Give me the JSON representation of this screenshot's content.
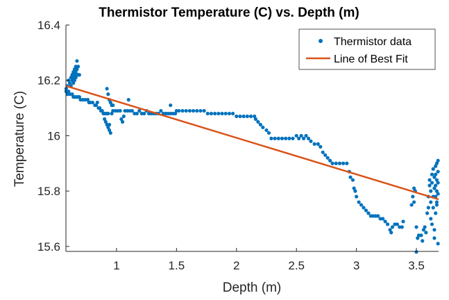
{
  "chart_data": {
    "type": "scatter",
    "title": "Thermistor Temperature (C) vs. Depth (m)",
    "xlabel": "Depth (m)",
    "ylabel": "Temperature (C)",
    "xlim": [
      0.578,
      3.685
    ],
    "ylim": [
      15.582,
      16.4
    ],
    "xticks": [
      1,
      1.5,
      2,
      2.5,
      3,
      3.5
    ],
    "xtick_labels": [
      "1",
      "1.5",
      "2",
      "2.5",
      "3",
      "3.5"
    ],
    "yticks": [
      16.4,
      16.2,
      16,
      15.8,
      15.6
    ],
    "ytick_labels": [
      "16.4",
      "16.2",
      "16",
      "15.8",
      "15.6"
    ],
    "grid": false,
    "legend": {
      "placement": "top-right",
      "entries": [
        "Thermistor data",
        "Line of Best Fit"
      ]
    },
    "colors": {
      "data": "#0072BD",
      "fit": "#D95319"
    },
    "series": [
      {
        "name": "Thermistor data",
        "type": "scatter",
        "points": [
          [
            0.58,
            16.16
          ],
          [
            0.58,
            16.17
          ],
          [
            0.59,
            16.15
          ],
          [
            0.59,
            16.18
          ],
          [
            0.6,
            16.16
          ],
          [
            0.6,
            16.2
          ],
          [
            0.61,
            16.15
          ],
          [
            0.61,
            16.19
          ],
          [
            0.62,
            16.21
          ],
          [
            0.62,
            16.18
          ],
          [
            0.63,
            16.22
          ],
          [
            0.63,
            16.2
          ],
          [
            0.63,
            16.15
          ],
          [
            0.64,
            16.23
          ],
          [
            0.64,
            16.21
          ],
          [
            0.64,
            16.19
          ],
          [
            0.64,
            16.14
          ],
          [
            0.65,
            16.24
          ],
          [
            0.65,
            16.22
          ],
          [
            0.65,
            16.2
          ],
          [
            0.65,
            16.14
          ],
          [
            0.66,
            16.25
          ],
          [
            0.66,
            16.23
          ],
          [
            0.66,
            16.21
          ],
          [
            0.66,
            16.14
          ],
          [
            0.67,
            16.27
          ],
          [
            0.67,
            16.24
          ],
          [
            0.67,
            16.22
          ],
          [
            0.67,
            16.14
          ],
          [
            0.68,
            16.25
          ],
          [
            0.68,
            16.22
          ],
          [
            0.68,
            16.14
          ],
          [
            0.69,
            16.22
          ],
          [
            0.69,
            16.14
          ],
          [
            0.7,
            16.13
          ],
          [
            0.72,
            16.13
          ],
          [
            0.74,
            16.13
          ],
          [
            0.76,
            16.13
          ],
          [
            0.77,
            16.12
          ],
          [
            0.78,
            16.12
          ],
          [
            0.8,
            16.12
          ],
          [
            0.82,
            16.11
          ],
          [
            0.83,
            16.11
          ],
          [
            0.84,
            16.12
          ],
          [
            0.85,
            16.1
          ],
          [
            0.86,
            16.1
          ],
          [
            0.87,
            16.09
          ],
          [
            0.88,
            16.09
          ],
          [
            0.89,
            16.08
          ],
          [
            0.9,
            16.08
          ],
          [
            0.91,
            16.08
          ],
          [
            0.92,
            16.08
          ],
          [
            0.93,
            16.08
          ],
          [
            0.9,
            16.06
          ],
          [
            0.91,
            16.05
          ],
          [
            0.92,
            16.04
          ],
          [
            0.93,
            16.03
          ],
          [
            0.94,
            16.02
          ],
          [
            0.95,
            16.01
          ],
          [
            0.94,
            16.04
          ],
          [
            0.92,
            16.17
          ],
          [
            0.93,
            16.15
          ],
          [
            0.94,
            16.13
          ],
          [
            0.95,
            16.12
          ],
          [
            0.96,
            16.11
          ],
          [
            0.97,
            16.11
          ],
          [
            0.96,
            16.08
          ],
          [
            0.97,
            16.09
          ],
          [
            0.99,
            16.09
          ],
          [
            1.01,
            16.09
          ],
          [
            1.03,
            16.09
          ],
          [
            1.04,
            16.06
          ],
          [
            1.05,
            16.05
          ],
          [
            1.06,
            16.07
          ],
          [
            1.07,
            16.09
          ],
          [
            1.09,
            16.09
          ],
          [
            1.1,
            16.13
          ],
          [
            1.11,
            16.09
          ],
          [
            1.13,
            16.09
          ],
          [
            1.15,
            16.08
          ],
          [
            1.17,
            16.08
          ],
          [
            1.19,
            16.09
          ],
          [
            1.21,
            16.08
          ],
          [
            1.23,
            16.08
          ],
          [
            1.25,
            16.09
          ],
          [
            1.27,
            16.08
          ],
          [
            1.29,
            16.08
          ],
          [
            1.31,
            16.08
          ],
          [
            1.33,
            16.08
          ],
          [
            1.35,
            16.08
          ],
          [
            1.37,
            16.09
          ],
          [
            1.39,
            16.08
          ],
          [
            1.41,
            16.08
          ],
          [
            1.43,
            16.08
          ],
          [
            1.45,
            16.08
          ],
          [
            1.47,
            16.08
          ],
          [
            1.49,
            16.08
          ],
          [
            1.5,
            16.09
          ],
          [
            1.45,
            16.11
          ],
          [
            1.52,
            16.09
          ],
          [
            1.55,
            16.09
          ],
          [
            1.58,
            16.09
          ],
          [
            1.61,
            16.09
          ],
          [
            1.64,
            16.09
          ],
          [
            1.67,
            16.09
          ],
          [
            1.7,
            16.09
          ],
          [
            1.73,
            16.09
          ],
          [
            1.76,
            16.08
          ],
          [
            1.79,
            16.08
          ],
          [
            1.82,
            16.08
          ],
          [
            1.85,
            16.08
          ],
          [
            1.88,
            16.08
          ],
          [
            1.91,
            16.08
          ],
          [
            1.94,
            16.08
          ],
          [
            1.97,
            16.08
          ],
          [
            2.0,
            16.07
          ],
          [
            2.03,
            16.07
          ],
          [
            2.06,
            16.07
          ],
          [
            2.09,
            16.07
          ],
          [
            2.12,
            16.07
          ],
          [
            2.15,
            16.07
          ],
          [
            2.16,
            16.06
          ],
          [
            2.18,
            16.05
          ],
          [
            2.2,
            16.04
          ],
          [
            2.22,
            16.03
          ],
          [
            2.25,
            16.02
          ],
          [
            2.27,
            16.01
          ],
          [
            2.29,
            15.99
          ],
          [
            2.32,
            15.99
          ],
          [
            2.35,
            15.99
          ],
          [
            2.38,
            15.99
          ],
          [
            2.41,
            15.99
          ],
          [
            2.44,
            15.99
          ],
          [
            2.47,
            15.99
          ],
          [
            2.5,
            16.0
          ],
          [
            2.52,
            15.99
          ],
          [
            2.54,
            16.0
          ],
          [
            2.56,
            15.99
          ],
          [
            2.58,
            16.0
          ],
          [
            2.6,
            15.99
          ],
          [
            2.62,
            15.98
          ],
          [
            2.65,
            15.97
          ],
          [
            2.68,
            15.97
          ],
          [
            2.7,
            15.96
          ],
          [
            2.72,
            15.94
          ],
          [
            2.74,
            15.93
          ],
          [
            2.76,
            15.92
          ],
          [
            2.78,
            15.91
          ],
          [
            2.8,
            15.9
          ],
          [
            2.83,
            15.9
          ],
          [
            2.86,
            15.9
          ],
          [
            2.89,
            15.9
          ],
          [
            2.92,
            15.9
          ],
          [
            2.94,
            15.87
          ],
          [
            2.95,
            15.85
          ],
          [
            2.97,
            15.84
          ],
          [
            2.98,
            15.81
          ],
          [
            2.99,
            15.8
          ],
          [
            3.0,
            15.78
          ],
          [
            3.02,
            15.76
          ],
          [
            3.04,
            15.75
          ],
          [
            3.06,
            15.74
          ],
          [
            3.08,
            15.73
          ],
          [
            3.1,
            15.72
          ],
          [
            3.12,
            15.71
          ],
          [
            3.14,
            15.71
          ],
          [
            3.16,
            15.71
          ],
          [
            3.18,
            15.71
          ],
          [
            3.2,
            15.7
          ],
          [
            3.22,
            15.7
          ],
          [
            3.24,
            15.69
          ],
          [
            3.26,
            15.68
          ],
          [
            3.28,
            15.66
          ],
          [
            3.29,
            15.65
          ],
          [
            3.3,
            15.67
          ],
          [
            3.32,
            15.68
          ],
          [
            3.34,
            15.68
          ],
          [
            3.36,
            15.67
          ],
          [
            3.38,
            15.67
          ],
          [
            3.39,
            15.69
          ],
          [
            3.46,
            15.75
          ],
          [
            3.47,
            15.78
          ],
          [
            3.48,
            15.81
          ],
          [
            3.49,
            15.8
          ],
          [
            3.48,
            15.76
          ],
          [
            3.5,
            15.67
          ],
          [
            3.51,
            15.63
          ],
          [
            3.52,
            15.64
          ],
          [
            3.54,
            15.64
          ],
          [
            3.55,
            15.62
          ],
          [
            3.56,
            15.66
          ],
          [
            3.57,
            15.67
          ],
          [
            3.5,
            15.58
          ],
          [
            3.58,
            15.65
          ],
          [
            3.59,
            15.72
          ],
          [
            3.6,
            15.74
          ],
          [
            3.6,
            15.78
          ],
          [
            3.61,
            15.82
          ],
          [
            3.61,
            15.84
          ],
          [
            3.62,
            15.7
          ],
          [
            3.62,
            15.76
          ],
          [
            3.62,
            15.8
          ],
          [
            3.63,
            15.86
          ],
          [
            3.63,
            15.83
          ],
          [
            3.63,
            15.68
          ],
          [
            3.64,
            15.78
          ],
          [
            3.64,
            15.88
          ],
          [
            3.64,
            15.74
          ],
          [
            3.65,
            15.85
          ],
          [
            3.65,
            15.81
          ],
          [
            3.65,
            15.63
          ],
          [
            3.65,
            15.66
          ],
          [
            3.66,
            15.89
          ],
          [
            3.66,
            15.86
          ],
          [
            3.66,
            15.82
          ],
          [
            3.66,
            15.78
          ],
          [
            3.66,
            15.72
          ],
          [
            3.67,
            15.9
          ],
          [
            3.67,
            15.84
          ],
          [
            3.67,
            15.8
          ],
          [
            3.67,
            15.76
          ],
          [
            3.67,
            15.75
          ],
          [
            3.68,
            15.91
          ],
          [
            3.68,
            15.87
          ],
          [
            3.68,
            15.83
          ],
          [
            3.68,
            15.79
          ],
          [
            3.68,
            15.61
          ]
        ]
      },
      {
        "name": "Line of Best Fit",
        "type": "line",
        "points": [
          [
            0.578,
            16.18
          ],
          [
            3.685,
            15.77
          ]
        ]
      }
    ]
  }
}
